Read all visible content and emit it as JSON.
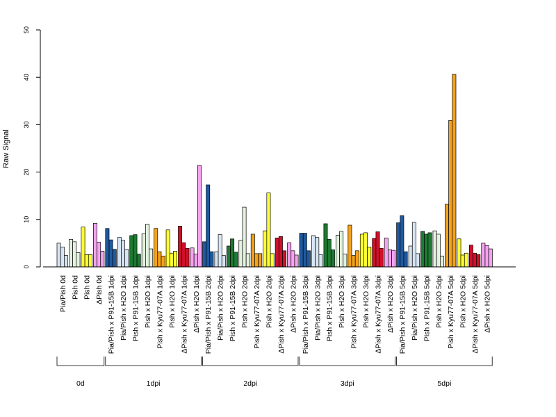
{
  "chart_data": {
    "type": "bar",
    "title": "",
    "xlabel": "",
    "ylabel": "Raw Signal",
    "ylim": [
      0,
      50
    ],
    "yticks": [
      0,
      10,
      20,
      30,
      40,
      50
    ],
    "grid": false,
    "legend": "none",
    "bars_per_category": 3,
    "categories": [
      "Pia/Pish 0d",
      "Pish 0d",
      "Pish 0d",
      "ΔPish 0d",
      "Pia/Pish x P91-15B 1dpi",
      "Pia/Pish x H2O 1dpi",
      "Pish x P91-15B 1dpi",
      "Pish x H2O 1dpi",
      "Pish x Kyu77-07A 1dpi",
      "Pish x H2O 1dpi",
      "ΔPish x Kyu77-07A 1dpi",
      "ΔPish x H2O 1dpi",
      "Pia/Pish x P91-15B 2dpi",
      "Pia/Pish x H2O 2dpi",
      "Pish x P91-15B 2dpi",
      "Pish x H2O 2dpi",
      "Pish x Kyu77-07A 2dpi",
      "Pish x H2O 2dpi",
      "ΔPish x Kyu77-07A 2dpi",
      "ΔPish x H2O 2dpi",
      "Pia/Pish x P91-15B 3dpi",
      "Pia/Pish x H2O 3dpi",
      "Pish x P91-15B 3dpi",
      "Pish x H2O 3dpi",
      "Pish x Kyu77-07A 3dpi",
      "Pish x H2O 3dpi",
      "ΔPish x Kyu77-07A 3dpi",
      "ΔPish x H2O 3dpi",
      "Pia/Pish x P91-15B 5dpi",
      "Pia/Pish x H2O 5dpi",
      "Pish x P91-15B 5dpi",
      "Pish x H2O 5dpi",
      "Pish x Kyu77-07A 5dpi",
      "Pish x H2O 5dpi",
      "ΔPish x Kyu77-07A 5dpi",
      "ΔPish x H2O 5dpi"
    ],
    "colors": [
      "#d7e5f3",
      "#e3f2df",
      "#ffff33",
      "#f5a3f0",
      "#1f5aa0",
      "#d7e5f3",
      "#1e7a32",
      "#e3f2df",
      "#f4a21c",
      "#ffff33",
      "#d0102a",
      "#f5a3f0",
      "#1f5aa0",
      "#d7e5f3",
      "#1e7a32",
      "#e3f2df",
      "#f4a21c",
      "#ffff33",
      "#d0102a",
      "#f5a3f0",
      "#1f5aa0",
      "#d7e5f3",
      "#1e7a32",
      "#e3f2df",
      "#f4a21c",
      "#ffff33",
      "#d0102a",
      "#f5a3f0",
      "#1f5aa0",
      "#d7e5f3",
      "#1e7a32",
      "#e3f2df",
      "#f4a21c",
      "#ffff33",
      "#d0102a",
      "#f5a3f0"
    ],
    "values": [
      [
        5.0,
        4.2,
        2.4
      ],
      [
        5.8,
        5.3,
        3.0
      ],
      [
        8.4,
        2.6,
        2.6
      ],
      [
        9.2,
        5.2,
        3.3
      ],
      [
        8.1,
        5.7,
        3.7
      ],
      [
        6.2,
        5.6,
        3.7
      ],
      [
        6.6,
        6.8,
        2.7
      ],
      [
        7.0,
        9.0,
        3.8
      ],
      [
        8.1,
        3.2,
        2.3
      ],
      [
        7.8,
        2.9,
        3.3
      ],
      [
        8.6,
        5.1,
        3.9
      ],
      [
        4.0,
        2.7,
        21.4
      ],
      [
        5.3,
        17.3,
        3.2
      ],
      [
        3.2,
        6.8,
        2.4
      ],
      [
        4.4,
        5.9,
        3.1
      ],
      [
        5.6,
        12.6,
        2.8
      ],
      [
        6.9,
        2.8,
        2.8
      ],
      [
        7.6,
        15.6,
        2.8
      ],
      [
        6.1,
        6.4,
        3.4
      ],
      [
        5.1,
        3.4,
        2.5
      ],
      [
        7.1,
        7.1,
        3.4
      ],
      [
        6.6,
        6.2,
        2.6
      ],
      [
        9.1,
        5.8,
        3.6
      ],
      [
        6.7,
        7.5,
        2.7
      ],
      [
        8.8,
        2.4,
        3.4
      ],
      [
        6.9,
        7.2,
        4.2
      ],
      [
        6.0,
        7.4,
        3.9
      ],
      [
        6.1,
        3.6,
        3.5
      ],
      [
        9.3,
        10.8,
        3.2
      ],
      [
        4.4,
        9.4,
        2.8
      ],
      [
        7.5,
        6.9,
        7.2
      ],
      [
        7.6,
        6.9,
        2.3
      ],
      [
        13.2,
        30.9,
        40.6
      ],
      [
        5.9,
        2.5,
        2.9
      ],
      [
        4.6,
        2.9,
        2.6
      ],
      [
        5.0,
        4.5,
        3.8
      ]
    ],
    "groups": [
      {
        "label": "0d",
        "from": 0,
        "to": 3
      },
      {
        "label": "1dpi",
        "from": 4,
        "to": 11
      },
      {
        "label": "2dpi",
        "from": 12,
        "to": 19
      },
      {
        "label": "3dpi",
        "from": 20,
        "to": 27
      },
      {
        "label": "5dpi",
        "from": 28,
        "to": 35
      }
    ]
  }
}
